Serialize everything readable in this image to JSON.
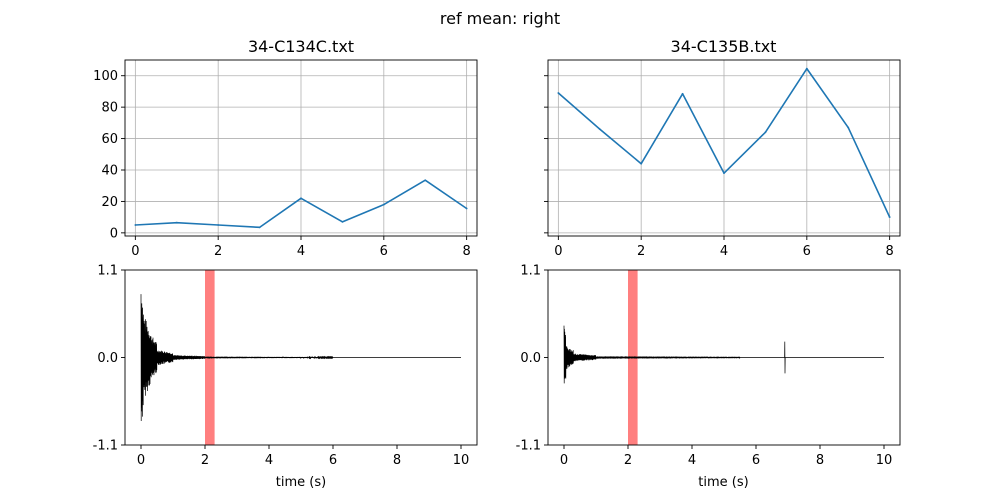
{
  "figure": {
    "suptitle": "ref mean: right",
    "colors": {
      "line": "#1f77b4",
      "wave": "#000000",
      "highlight": "#ff7f7f",
      "grid": "#b0b0b0"
    }
  },
  "chart_data": [
    {
      "type": "line",
      "title": "34-C134C.txt",
      "xlabel": "",
      "ylabel": "",
      "x": [
        0,
        1,
        2,
        3,
        4,
        5,
        6,
        7,
        8
      ],
      "series": [
        {
          "values": [
            5,
            6.5,
            5,
            3.5,
            22,
            7,
            18,
            33.5,
            15.5
          ]
        }
      ],
      "xlim": [
        -0.25,
        8.25
      ],
      "ylim": [
        -2,
        110
      ],
      "xticks": [
        0,
        2,
        4,
        6,
        8
      ],
      "xtick_labels": [
        "0",
        "2",
        "4",
        "6",
        "8"
      ],
      "yticks": [
        0,
        20,
        40,
        60,
        80,
        100
      ],
      "ytick_labels": [
        "0",
        "20",
        "40",
        "60",
        "80",
        "100"
      ],
      "grid": true,
      "show_ytick_labels": true
    },
    {
      "type": "line",
      "title": "34-C135B.txt",
      "xlabel": "",
      "ylabel": "",
      "x": [
        0,
        1,
        2,
        3,
        4,
        5,
        6,
        7,
        8
      ],
      "series": [
        {
          "values": [
            89,
            66,
            44,
            88.5,
            38,
            64,
            104.5,
            67,
            10
          ]
        }
      ],
      "xlim": [
        -0.25,
        8.25
      ],
      "ylim": [
        -2,
        110
      ],
      "xticks": [
        0,
        2,
        4,
        6,
        8
      ],
      "xtick_labels": [
        "0",
        "2",
        "4",
        "6",
        "8"
      ],
      "yticks": [
        0,
        20,
        40,
        60,
        80,
        100
      ],
      "ytick_labels": [
        "",
        "",
        "",
        "",
        "",
        ""
      ],
      "grid": true,
      "show_ytick_labels": false
    },
    {
      "type": "line",
      "title": "",
      "xlabel": "time (s)",
      "ylabel": "",
      "xlim": [
        -0.5,
        10.5
      ],
      "ylim": [
        -1.1,
        1.1
      ],
      "xticks": [
        0,
        2,
        4,
        6,
        8,
        10
      ],
      "xtick_labels": [
        "0",
        "2",
        "4",
        "6",
        "8",
        "10"
      ],
      "yticks": [
        -1.1,
        0.0,
        1.1
      ],
      "ytick_labels": [
        "-1.1",
        "0.0",
        "1.1"
      ],
      "grid": false,
      "highlight_span": [
        2.0,
        2.3
      ],
      "waveform": {
        "duration": 10,
        "envelope": [
          {
            "start": 0.0,
            "end": 0.08,
            "amp": 1.0
          },
          {
            "start": 0.08,
            "end": 0.3,
            "amp": 0.55
          },
          {
            "start": 0.3,
            "end": 0.5,
            "amp": 0.3
          },
          {
            "start": 0.5,
            "end": 1.0,
            "amp": 0.1
          },
          {
            "start": 1.0,
            "end": 2.0,
            "amp": 0.03
          },
          {
            "start": 2.0,
            "end": 4.5,
            "amp": 0.012
          },
          {
            "start": 4.5,
            "end": 6.0,
            "amp": 0.008
          },
          {
            "start": 6.0,
            "end": 10.0,
            "amp": 0.0
          }
        ]
      }
    },
    {
      "type": "line",
      "title": "",
      "xlabel": "time (s)",
      "ylabel": "",
      "xlim": [
        -0.5,
        10.5
      ],
      "ylim": [
        -1.1,
        1.1
      ],
      "xticks": [
        0,
        2,
        4,
        6,
        8,
        10
      ],
      "xtick_labels": [
        "0",
        "2",
        "4",
        "6",
        "8",
        "10"
      ],
      "yticks": [
        -1.1,
        0.0,
        1.1
      ],
      "ytick_labels": [
        "-1.1",
        "0.0",
        "1.1"
      ],
      "grid": false,
      "highlight_span": [
        2.0,
        2.3
      ],
      "waveform": {
        "duration": 10,
        "envelope": [
          {
            "start": 0.0,
            "end": 0.06,
            "amp": 0.45
          },
          {
            "start": 0.06,
            "end": 0.3,
            "amp": 0.15
          },
          {
            "start": 0.3,
            "end": 1.0,
            "amp": 0.05
          },
          {
            "start": 1.0,
            "end": 5.5,
            "amp": 0.015
          },
          {
            "start": 5.5,
            "end": 10.0,
            "amp": 0.0
          }
        ],
        "spike": {
          "t": 6.9,
          "amp": 0.2
        }
      }
    }
  ]
}
